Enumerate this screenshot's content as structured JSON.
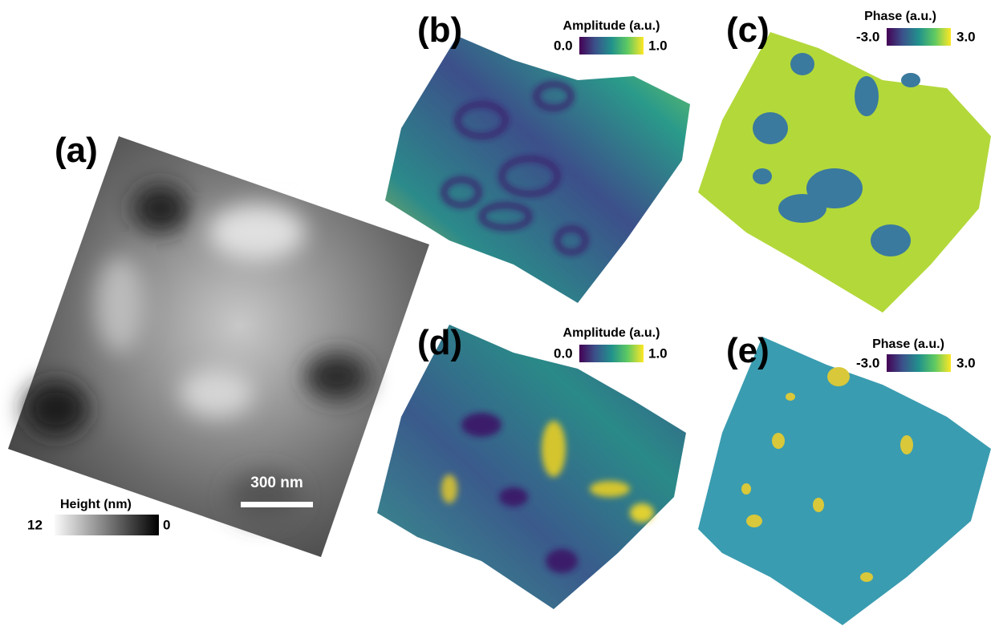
{
  "panels": [
    {
      "label": "(a)",
      "colorbar": {
        "title": "Height (nm)",
        "min": "12",
        "max": "0"
      },
      "scale_bar": "300 nm"
    },
    {
      "label": "(b)",
      "colorbar": {
        "title": "Amplitude  (a.u.)",
        "min": "0.0",
        "max": "1.0"
      }
    },
    {
      "label": "(c)",
      "colorbar": {
        "title": "Phase  (a.u.)",
        "min": "-3.0",
        "max": "3.0"
      }
    },
    {
      "label": "(d)",
      "colorbar": {
        "title": "Amplitude  (a.u.)",
        "min": "0.0",
        "max": "1.0"
      }
    },
    {
      "label": "(e)",
      "colorbar": {
        "title": "Phase  (a.u.)",
        "min": "-3.0",
        "max": "3.0"
      }
    }
  ]
}
